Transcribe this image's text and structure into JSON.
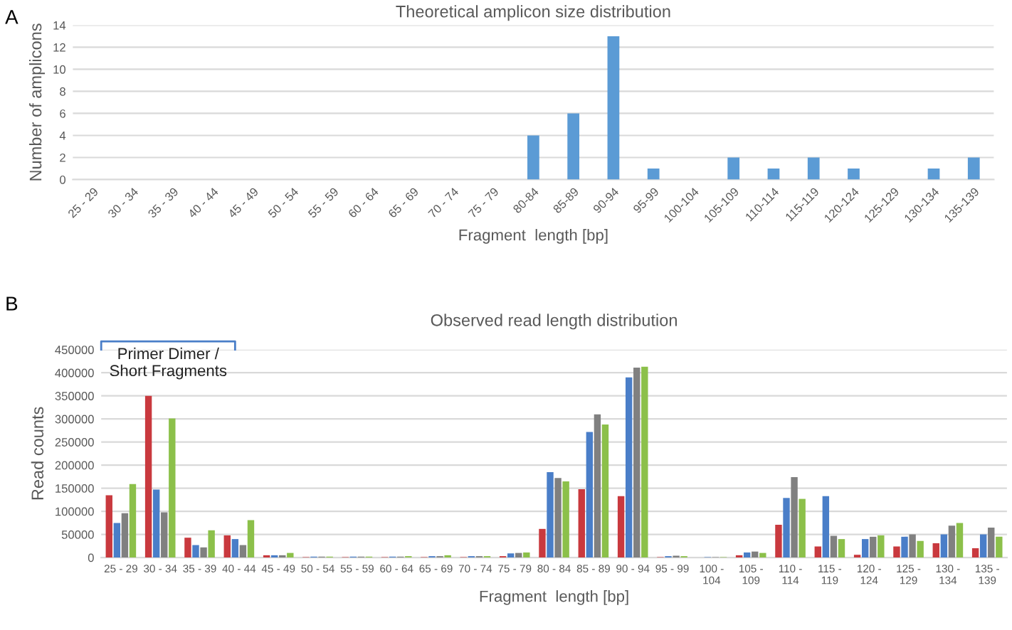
{
  "chart_data": [
    {
      "type": "bar",
      "title": "Theoretical amplicon size distribution",
      "xlabel": "Fragment  length [bp]",
      "ylabel": "Number of amplicons",
      "categories": [
        "25 - 29",
        "30 - 34",
        "35 - 39",
        "40 - 44",
        "45 - 49",
        "50 - 54",
        "55 - 59",
        "60 - 64",
        "65 - 69",
        "70 - 74",
        "75 - 79",
        "80-84",
        "85-89",
        "90-94",
        "95-99",
        "100-104",
        "105-109",
        "110-114",
        "115-119",
        "120-124",
        "125-129",
        "130-134",
        "135-139"
      ],
      "values": [
        0,
        0,
        0,
        0,
        0,
        0,
        0,
        0,
        0,
        0,
        0,
        4,
        6,
        13,
        1,
        0,
        2,
        1,
        2,
        1,
        0,
        1,
        2
      ],
      "color": "#5b9bd5",
      "ylim": [
        0,
        14
      ],
      "yticks": [
        0,
        2,
        4,
        6,
        8,
        10,
        12,
        14
      ],
      "grid": "y",
      "annotations": [
        "A"
      ]
    },
    {
      "type": "bar",
      "title": "Observed read length distribution",
      "xlabel": "Fragment  length [bp]",
      "ylabel": "Read counts",
      "categories": [
        "25 - 29",
        "30 - 34",
        "35 - 39",
        "40 - 44",
        "45 - 49",
        "50 - 54",
        "55 - 59",
        "60 - 64",
        "65 - 69",
        "70 - 74",
        "75 - 79",
        "80 - 84",
        "85 - 89",
        "90 - 94",
        "95 - 99",
        "100 - 104",
        "105 - 109",
        "110 - 114",
        "115 - 119",
        "120 - 124",
        "125 - 129",
        "130 - 134",
        "135 - 139"
      ],
      "series": [
        {
          "color": "#c9393e",
          "values": [
            135000,
            350000,
            43000,
            48000,
            5000,
            1000,
            1000,
            1000,
            1000,
            1000,
            3000,
            62000,
            148000,
            133000,
            1000,
            0,
            5000,
            71000,
            24000,
            6000,
            24000,
            31000,
            20000
          ]
        },
        {
          "color": "#4a7ec8",
          "values": [
            75000,
            147000,
            27000,
            40000,
            5000,
            2000,
            2000,
            2000,
            3000,
            3000,
            9000,
            185000,
            272000,
            390000,
            3000,
            1000,
            11000,
            129000,
            133000,
            40000,
            45000,
            50000,
            50000
          ]
        },
        {
          "color": "#808080",
          "values": [
            96000,
            98000,
            22000,
            27000,
            5000,
            2000,
            2000,
            2000,
            3000,
            3000,
            10000,
            172000,
            310000,
            411000,
            4000,
            1000,
            13000,
            174000,
            47000,
            45000,
            50000,
            69000,
            65000
          ]
        },
        {
          "color": "#8cc04a",
          "values": [
            159000,
            301000,
            59000,
            81000,
            10000,
            2000,
            2000,
            3000,
            5000,
            3000,
            11000,
            165000,
            288000,
            413000,
            3000,
            1000,
            10000,
            127000,
            40000,
            48000,
            36000,
            75000,
            45000
          ]
        }
      ],
      "ylim": [
        0,
        450000
      ],
      "yticks": [
        0,
        50000,
        100000,
        150000,
        200000,
        250000,
        300000,
        350000,
        400000,
        450000
      ],
      "grid": "y",
      "annotations": [
        "B",
        "Primer Dimer /\nShort Fragments"
      ]
    }
  ]
}
